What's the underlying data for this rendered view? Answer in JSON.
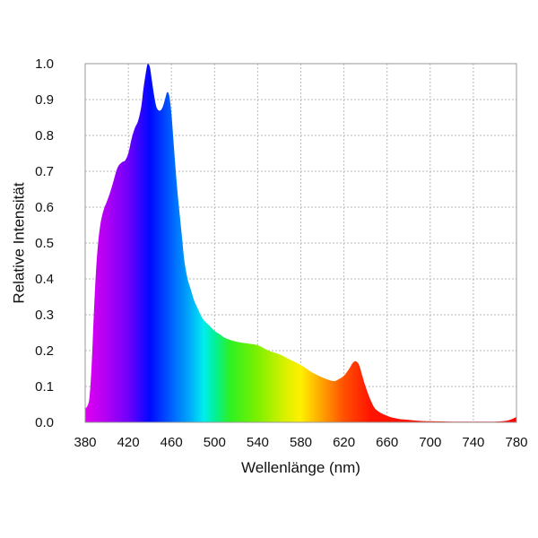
{
  "chart_data": {
    "type": "area",
    "title": "",
    "xlabel": "Wellenlänge (nm)",
    "ylabel": "Relative Intensität",
    "xlim": [
      380,
      780
    ],
    "ylim": [
      0.0,
      1.0
    ],
    "grid": true,
    "legend": "none",
    "fill": "spectral-gradient",
    "x_ticks": [
      380,
      420,
      460,
      500,
      540,
      580,
      620,
      660,
      700,
      740,
      780
    ],
    "x_tick_labels": [
      "380",
      "420",
      "460",
      "500",
      "540",
      "580",
      "620",
      "660",
      "700",
      "740",
      "780"
    ],
    "y_ticks": [
      0.0,
      0.1,
      0.2,
      0.3,
      0.4,
      0.5,
      0.6,
      0.7,
      0.8,
      0.9,
      1.0
    ],
    "y_tick_labels": [
      "0.0",
      "0.1",
      "0.2",
      "0.3",
      "0.4",
      "0.5",
      "0.6",
      "0.7",
      "0.8",
      "0.9",
      "1.0"
    ],
    "series": [
      {
        "x": [
          380,
          382,
          384,
          386,
          388,
          390,
          392,
          394,
          396,
          398,
          400,
          403,
          406,
          410,
          414,
          417,
          420,
          423,
          426,
          429,
          432,
          434,
          436,
          438,
          440,
          442,
          444,
          446,
          448,
          450,
          452,
          454,
          456,
          458,
          460,
          462,
          464,
          466,
          468,
          470,
          472,
          475,
          478,
          481,
          484,
          487,
          490,
          495,
          500,
          505,
          510,
          520,
          530,
          540,
          550,
          560,
          570,
          580,
          590,
          600,
          610,
          615,
          620,
          625,
          628,
          631,
          634,
          637,
          640,
          645,
          650,
          660,
          670,
          680,
          690,
          700,
          720,
          740,
          760,
          770,
          775,
          780
        ],
        "y": [
          0.04,
          0.045,
          0.07,
          0.16,
          0.3,
          0.42,
          0.5,
          0.55,
          0.58,
          0.6,
          0.615,
          0.64,
          0.67,
          0.71,
          0.725,
          0.73,
          0.75,
          0.79,
          0.82,
          0.84,
          0.88,
          0.93,
          0.97,
          1.0,
          0.99,
          0.95,
          0.91,
          0.88,
          0.87,
          0.87,
          0.88,
          0.9,
          0.92,
          0.91,
          0.86,
          0.78,
          0.7,
          0.63,
          0.57,
          0.51,
          0.45,
          0.4,
          0.37,
          0.34,
          0.32,
          0.3,
          0.285,
          0.27,
          0.255,
          0.245,
          0.235,
          0.225,
          0.22,
          0.215,
          0.2,
          0.19,
          0.175,
          0.16,
          0.14,
          0.125,
          0.115,
          0.12,
          0.13,
          0.15,
          0.165,
          0.17,
          0.16,
          0.13,
          0.1,
          0.06,
          0.035,
          0.018,
          0.01,
          0.007,
          0.004,
          0.003,
          0.002,
          0.002,
          0.002,
          0.004,
          0.008,
          0.015
        ]
      }
    ]
  },
  "colors": {
    "spectrum_stops": [
      {
        "wavelength": 380,
        "color": "#e000f0"
      },
      {
        "wavelength": 400,
        "color": "#b000f4"
      },
      {
        "wavelength": 420,
        "color": "#7000fa"
      },
      {
        "wavelength": 440,
        "color": "#0008ff"
      },
      {
        "wavelength": 460,
        "color": "#0060ff"
      },
      {
        "wavelength": 480,
        "color": "#00b8f8"
      },
      {
        "wavelength": 490,
        "color": "#00eeee"
      },
      {
        "wavelength": 500,
        "color": "#00f09a"
      },
      {
        "wavelength": 515,
        "color": "#30f020"
      },
      {
        "wavelength": 540,
        "color": "#7df000"
      },
      {
        "wavelength": 565,
        "color": "#d8f000"
      },
      {
        "wavelength": 580,
        "color": "#fff000"
      },
      {
        "wavelength": 600,
        "color": "#ffa000"
      },
      {
        "wavelength": 620,
        "color": "#ff5000"
      },
      {
        "wavelength": 645,
        "color": "#ff1400"
      },
      {
        "wavelength": 780,
        "color": "#ff0000"
      }
    ],
    "grid": "#b8b8b8",
    "frame": "#999999"
  }
}
